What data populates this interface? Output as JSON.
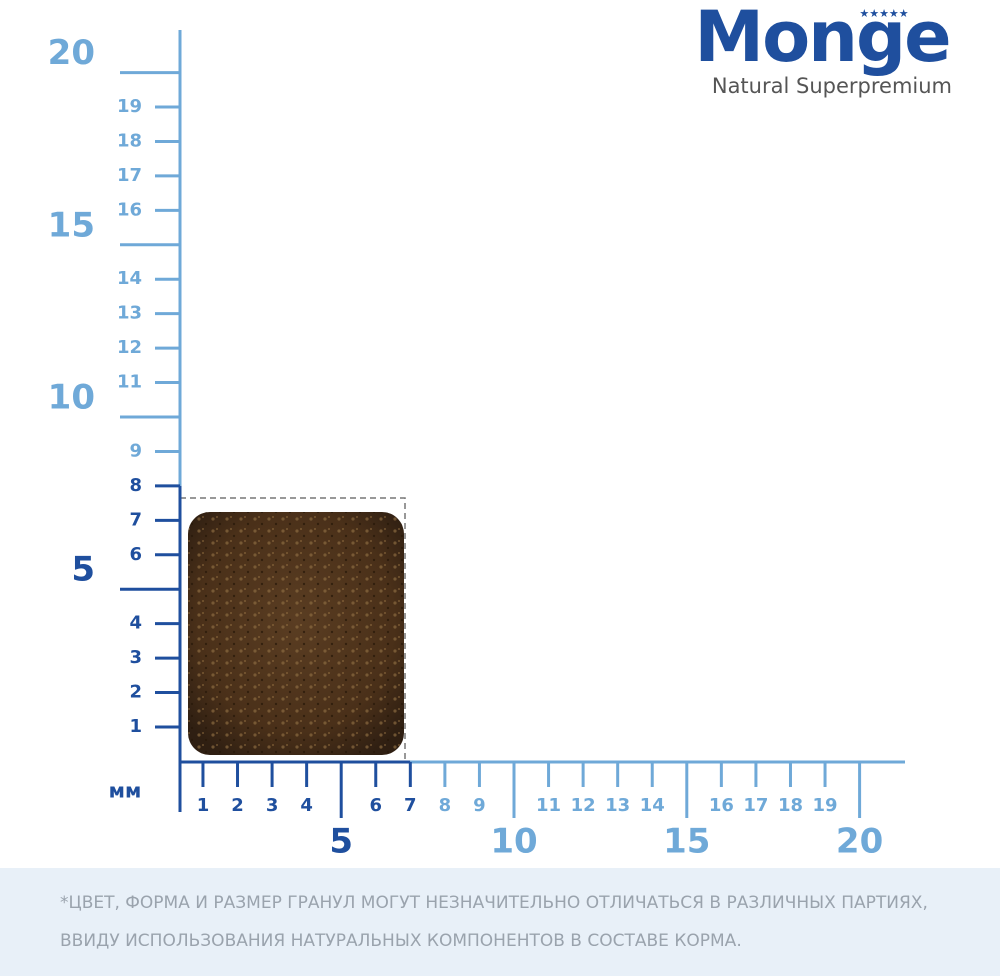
{
  "brand": {
    "name": "Monge",
    "tagline": "Natural Superpremium"
  },
  "unit": "мм",
  "y_axis": {
    "minor": [
      1,
      2,
      3,
      4,
      6,
      7,
      8,
      9,
      11,
      12,
      13,
      14,
      16,
      17,
      18,
      19
    ],
    "major": [
      5,
      10,
      15,
      20
    ]
  },
  "x_axis": {
    "minor": [
      1,
      2,
      3,
      4,
      6,
      7,
      8,
      9,
      11,
      12,
      13,
      14,
      16,
      17,
      18,
      19
    ],
    "major": [
      5,
      10,
      15,
      20
    ]
  },
  "footnote": [
    "*ЦВЕТ, ФОРМА И РАЗМЕР ГРАНУЛ МОГУТ НЕЗНАЧИТЕЛЬНО ОТЛИЧАТЬСЯ В РАЗЛИЧНЫХ ПАРТИЯХ,",
    "ВВИДУ ИСПОЛЬЗОВАНИЯ НАТУРАЛЬНЫХ КОМПОНЕНТОВ В СОСТАВЕ КОРМА."
  ]
}
